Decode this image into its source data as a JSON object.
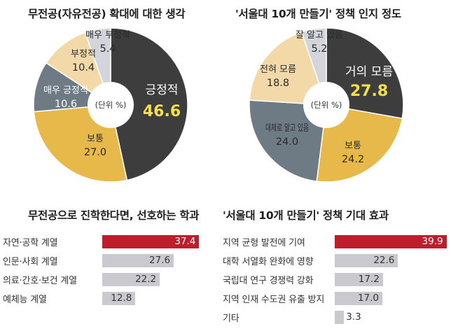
{
  "chart_data": [
    {
      "type": "pie",
      "title": "무전공(자유전공) 확대에 대한 생각",
      "unit_label": "(단위 %)",
      "slices": [
        {
          "label": "긍정적",
          "value": 46.6,
          "value_text": "46.6",
          "color": "#3d3d3d"
        },
        {
          "label": "보통",
          "value": 27.0,
          "value_text": "27.0",
          "color": "#e6b94a"
        },
        {
          "label": "매우 긍정적",
          "value": 10.6,
          "value_text": "10.6",
          "color": "#6e7b85"
        },
        {
          "label": "부정적",
          "value": 10.4,
          "value_text": "10.4",
          "color": "#f3d9a8"
        },
        {
          "label": "매우 부정적",
          "value": 5.4,
          "value_text": "5.4",
          "color": "#d3d5da"
        }
      ]
    },
    {
      "type": "pie",
      "title": "'서울대 10개 만들기' 정책 인지 정도",
      "unit_label": "(단위 %)",
      "slices": [
        {
          "label": "거의 모름",
          "value": 27.8,
          "value_text": "27.8",
          "color": "#3d3d3d"
        },
        {
          "label": "보통",
          "value": 24.2,
          "value_text": "24.2",
          "color": "#e6b94a"
        },
        {
          "label": "대체로 알고 있음",
          "value": 24.0,
          "value_text": "24.0",
          "color": "#6e7b85"
        },
        {
          "label": "전혀 모름",
          "value": 18.8,
          "value_text": "18.8",
          "color": "#f3d9a8"
        },
        {
          "label": "잘 알고 있음",
          "value": 5.2,
          "value_text": "5.2",
          "color": "#d3d5da"
        }
      ]
    },
    {
      "type": "bar",
      "title": "무전공으로 진학한다면, 선호하는 학과",
      "categories": [
        "자연·공학 계열",
        "인문·사회 계열",
        "의료·간호·보건 계열",
        "예체능 계열"
      ],
      "values": [
        37.4,
        27.6,
        22.2,
        12.8
      ],
      "value_texts": [
        "37.4",
        "27.6",
        "22.2",
        "12.8"
      ],
      "highlight_color": "#bf1d2c",
      "bar_color": "#c9c9cf",
      "xlim": [
        0,
        40
      ]
    },
    {
      "type": "bar",
      "title": "'서울대 10개 만들기' 정책 기대 효과",
      "categories": [
        "지역 균형 발전에 기여",
        "대학 서열화 완화에 영향",
        "국립대 연구 경쟁력 강화",
        "지역 인재 수도권 유출 방지",
        "기타"
      ],
      "values": [
        39.9,
        22.6,
        17.2,
        17.0,
        3.3
      ],
      "value_texts": [
        "39.9",
        "22.6",
        "17.2",
        "17.0",
        "3.3"
      ],
      "highlight_color": "#bf1d2c",
      "bar_color": "#c9c9cf",
      "xlim": [
        0,
        40
      ]
    }
  ]
}
